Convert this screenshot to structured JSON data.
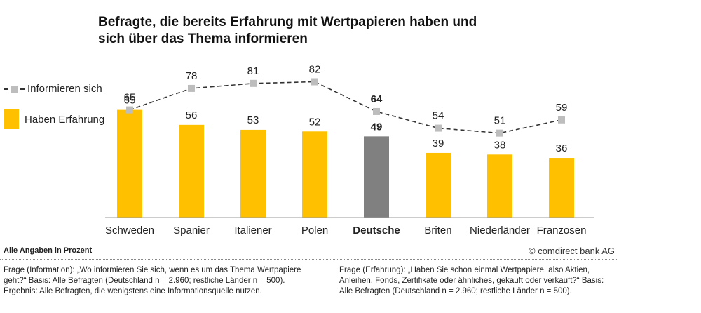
{
  "title_lines": [
    "Befragte, die bereits Erfahrung mit Wertpapieren haben und",
    "sich über das Thema informieren"
  ],
  "legend": {
    "line_label": "Informieren sich",
    "bar_label": "Haben Erfahrung"
  },
  "colors": {
    "bar": "#ffc000",
    "bar_highlight": "#808080",
    "line": "#333333",
    "marker": "#bdbdbd"
  },
  "chart_data": {
    "type": "bar",
    "categories": [
      "Schweden",
      "Spanier",
      "Italiener",
      "Polen",
      "Deutsche",
      "Briten",
      "Niederländer",
      "Franzosen"
    ],
    "highlight_category": "Deutsche",
    "series": [
      {
        "name": "Haben Erfahrung",
        "type": "bar",
        "values": [
          65,
          56,
          53,
          52,
          49,
          39,
          38,
          36
        ]
      },
      {
        "name": "Informieren sich",
        "type": "line",
        "style": "dashed",
        "values": [
          65,
          78,
          81,
          82,
          64,
          54,
          51,
          59
        ]
      }
    ],
    "ylim": [
      0,
      100
    ],
    "grid": false,
    "legend_position": "left"
  },
  "footer": {
    "unit_note": "Alle Angaben in Prozent",
    "copyright": "© comdirect bank AG",
    "left_lines": [
      "Frage (Information): „Wo informieren Sie sich, wenn es um das Thema Wertpapiere",
      "geht?“ Basis: Alle Befragten (Deutschland n = 2.960; restliche Länder n = 500).",
      "Ergebnis: Alle Befragten, die wenigstens eine Informationsquelle nutzen."
    ],
    "right_lines": [
      "Frage (Erfahrung): „Haben Sie schon einmal Wertpapiere, also Aktien,",
      "Anleihen, Fonds, Zertifikate oder ähnliches, gekauft oder verkauft?“ Basis:",
      "Alle Befragten (Deutschland n = 2.960; restliche Länder n = 500)."
    ]
  }
}
